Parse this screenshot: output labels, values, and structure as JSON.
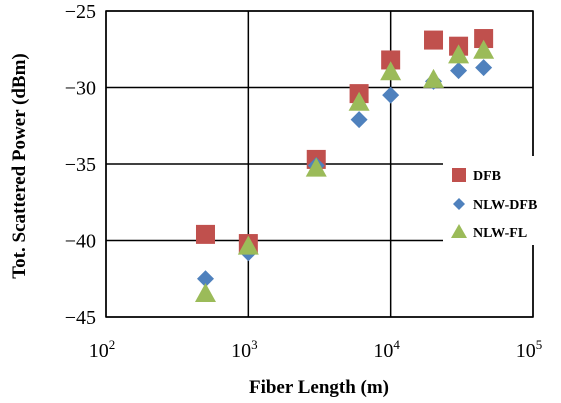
{
  "chart_data": {
    "type": "scatter",
    "xscale": "log",
    "xlim": [
      100,
      100000
    ],
    "ylim": [
      -45,
      -25
    ],
    "xlabel": "Fiber Length (m)",
    "ylabel": "Tot. Scattered Power (dBm)",
    "xticks": [
      {
        "base": "10",
        "exp": "2"
      },
      {
        "base": "10",
        "exp": "3"
      },
      {
        "base": "10",
        "exp": "4"
      },
      {
        "base": "10",
        "exp": "5"
      }
    ],
    "yticks": [
      "−25",
      "−30",
      "−35",
      "−40",
      "−45"
    ],
    "ytick_values": [
      -25,
      -30,
      -35,
      -40,
      -45
    ],
    "xtick_values": [
      100,
      1000,
      10000,
      100000
    ],
    "grid": true,
    "legend_position": "right-middle",
    "series": [
      {
        "name": "DFB",
        "color": "#c0504d",
        "marker": "square",
        "points": [
          {
            "x": 500,
            "y": -39.6
          },
          {
            "x": 1000,
            "y": -40.2
          },
          {
            "x": 3000,
            "y": -34.7
          },
          {
            "x": 6000,
            "y": -30.4
          },
          {
            "x": 10000,
            "y": -28.2
          },
          {
            "x": 20000,
            "y": -26.9
          },
          {
            "x": 30000,
            "y": -27.3
          },
          {
            "x": 45000,
            "y": -26.8
          }
        ]
      },
      {
        "name": "NLW-DFB",
        "color": "#4f81bd",
        "marker": "diamond",
        "points": [
          {
            "x": 500,
            "y": -42.5
          },
          {
            "x": 1000,
            "y": -40.8
          },
          {
            "x": 3000,
            "y": -35.1
          },
          {
            "x": 6000,
            "y": -32.1
          },
          {
            "x": 10000,
            "y": -30.5
          },
          {
            "x": 20000,
            "y": -29.6
          },
          {
            "x": 30000,
            "y": -28.9
          },
          {
            "x": 45000,
            "y": -28.7
          }
        ]
      },
      {
        "name": "NLW-FL",
        "color": "#9bbb59",
        "marker": "triangle",
        "points": [
          {
            "x": 500,
            "y": -43.5
          },
          {
            "x": 1000,
            "y": -40.4
          },
          {
            "x": 3000,
            "y": -35.3
          },
          {
            "x": 6000,
            "y": -31.0
          },
          {
            "x": 10000,
            "y": -29.0
          },
          {
            "x": 20000,
            "y": -29.5
          },
          {
            "x": 30000,
            "y": -27.9
          },
          {
            "x": 45000,
            "y": -27.6
          }
        ]
      }
    ]
  }
}
